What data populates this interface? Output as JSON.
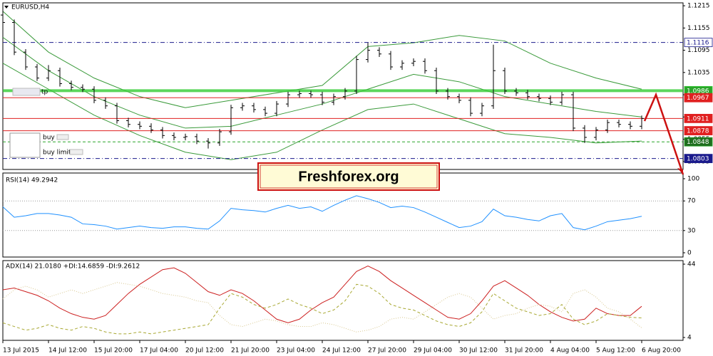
{
  "chart_data": [
    {
      "type": "candlestick",
      "title": "EURUSD,H4",
      "open": [
        1.119,
        1.117,
        1.109,
        1.105,
        1.102,
        1.104,
        1.1005,
        1.0995,
        1.099,
        1.096,
        1.0945,
        1.0905,
        1.0895,
        1.089,
        1.088,
        1.0865,
        1.086,
        1.0862,
        1.085,
        1.0845,
        1.0875,
        1.094,
        1.0945,
        1.0935,
        1.0925,
        1.095,
        1.0975,
        1.0978,
        1.0975,
        1.0955,
        1.097,
        1.0985,
        1.107,
        1.1095,
        1.1085,
        1.105,
        1.106,
        1.1065,
        1.104,
        1.0985,
        1.097,
        1.096,
        1.0925,
        1.0945,
        1.104,
        1.0985,
        1.098,
        1.097,
        1.0965,
        1.0955,
        1.0975,
        1.0885,
        1.086,
        1.088,
        1.09,
        1.0895,
        1.089
      ],
      "high": [
        1.1205,
        1.1178,
        1.1098,
        1.1058,
        1.1055,
        1.1048,
        1.1013,
        1.1003,
        1.0998,
        1.0968,
        1.0953,
        1.0913,
        1.0903,
        1.0898,
        1.0888,
        1.0873,
        1.087,
        1.087,
        1.0858,
        1.0883,
        1.0948,
        1.0953,
        1.0953,
        1.0943,
        1.0958,
        1.0983,
        1.0986,
        1.0986,
        1.0983,
        1.0978,
        1.0993,
        1.108,
        1.1115,
        1.1103,
        1.1093,
        1.1068,
        1.1073,
        1.1073,
        1.1048,
        1.0993,
        1.0978,
        1.0968,
        1.0953,
        1.111,
        1.1048,
        1.0993,
        1.0988,
        1.0978,
        1.0973,
        1.0983,
        1.0983,
        1.0893,
        1.0888,
        1.0908,
        1.0908,
        1.0903,
        1.0919
      ],
      "low": [
        1.1162,
        1.1082,
        1.1042,
        1.1012,
        1.1012,
        1.0997,
        1.0987,
        1.0982,
        1.0952,
        1.0937,
        1.0897,
        1.0887,
        1.0882,
        1.0872,
        1.0857,
        1.0852,
        1.0852,
        1.0842,
        1.083,
        1.0837,
        1.0867,
        1.0932,
        1.0927,
        1.0917,
        1.0917,
        1.0942,
        1.0967,
        1.0967,
        1.0947,
        1.0947,
        1.0962,
        1.0977,
        1.1062,
        1.1077,
        1.1042,
        1.1042,
        1.1052,
        1.1032,
        1.0977,
        1.0962,
        1.0952,
        1.0917,
        1.0917,
        1.0937,
        1.0977,
        1.0972,
        1.0962,
        1.0957,
        1.0947,
        1.0947,
        1.0877,
        1.0845,
        1.0852,
        1.0872,
        1.0887,
        1.0882,
        1.0882
      ],
      "close": [
        1.117,
        1.109,
        1.105,
        1.102,
        1.104,
        1.1005,
        1.0995,
        1.099,
        1.096,
        1.0945,
        1.0905,
        1.0895,
        1.089,
        1.088,
        1.0865,
        1.086,
        1.0862,
        1.085,
        1.0845,
        1.0875,
        1.094,
        1.0945,
        1.0935,
        1.0925,
        1.095,
        1.0975,
        1.0978,
        1.0975,
        1.0955,
        1.097,
        1.0985,
        1.107,
        1.1095,
        1.1085,
        1.105,
        1.106,
        1.1065,
        1.104,
        1.0985,
        1.097,
        1.096,
        1.0925,
        1.0945,
        1.104,
        1.0985,
        1.098,
        1.097,
        1.0965,
        1.0955,
        1.0975,
        1.0885,
        1.086,
        1.088,
        1.09,
        1.0895,
        1.089,
        1.0911
      ],
      "color": "#000000",
      "bands": {
        "x": [
          0,
          4,
          8,
          12,
          16,
          20,
          24,
          28,
          32,
          36,
          40,
          44,
          48,
          52,
          56
        ],
        "upper": [
          1.12,
          1.109,
          1.102,
          1.097,
          1.094,
          1.096,
          1.098,
          1.1,
          1.1105,
          1.1115,
          1.1135,
          1.112,
          1.106,
          1.102,
          1.099
        ],
        "middle": [
          1.113,
          1.104,
          1.097,
          1.092,
          1.0885,
          1.089,
          1.092,
          1.095,
          1.099,
          1.103,
          1.101,
          1.097,
          1.095,
          1.093,
          1.0915
        ],
        "lower": [
          1.106,
          1.099,
          1.092,
          1.0865,
          1.082,
          1.08,
          1.082,
          1.088,
          1.0935,
          1.095,
          1.091,
          1.087,
          1.086,
          1.0845,
          1.085
        ],
        "color": "#3a9a3a"
      },
      "levels": [
        {
          "value": 1.1116,
          "color": "#1a1a8c",
          "style": "dashdot",
          "label_bg": "#ffffff",
          "label_fg": "#1a1a8c"
        },
        {
          "value": 1.0986,
          "color": "#33cc33",
          "style": "thick",
          "label_bg": "#2aa52a",
          "label_fg": "#ffffff"
        },
        {
          "value": 1.0967,
          "color": "#e02020",
          "style": "solid",
          "label_bg": "#e02020",
          "label_fg": "#ffffff"
        },
        {
          "value": 1.0911,
          "color": "#e02020",
          "style": "solid",
          "label_bg": "#e02020",
          "label_fg": "#ffffff"
        },
        {
          "value": 1.0878,
          "color": "#e02020",
          "style": "solid",
          "label_bg": "#e02020",
          "label_fg": "#ffffff"
        },
        {
          "value": 1.0848,
          "color": "#2aa52a",
          "style": "dashed",
          "label_bg": "#1e6e1e",
          "label_fg": "#ffffff"
        },
        {
          "value": 1.0803,
          "color": "#1a1a8c",
          "style": "dashdot",
          "label_bg": "#1a1a8c",
          "label_fg": "#ffffff"
        }
      ],
      "ylim": [
        1.0785,
        1.1219
      ],
      "yticks": [
        1.1215,
        1.1155,
        1.1095,
        1.1035,
        1.0975,
        1.0915,
        1.0855,
        1.0795
      ],
      "xticks": [
        {
          "value": 0,
          "label": "13 Jul 2015"
        },
        {
          "value": 4,
          "label": "14 Jul 12:00"
        },
        {
          "value": 8,
          "label": "15 Jul 20:00"
        },
        {
          "value": 12,
          "label": "17 Jul 04:00"
        },
        {
          "value": 16,
          "label": "20 Jul 12:00"
        },
        {
          "value": 20,
          "label": "21 Jul 20:00"
        },
        {
          "value": 24,
          "label": "23 Jul 04:00"
        },
        {
          "value": 28,
          "label": "24 Jul 12:00"
        },
        {
          "value": 32,
          "label": "27 Jul 20:00"
        },
        {
          "value": 36,
          "label": "29 Jul 04:00"
        },
        {
          "value": 40,
          "label": "30 Jul 12:00"
        },
        {
          "value": 44,
          "label": "31 Jul 20:00"
        },
        {
          "value": 48,
          "label": "4 Aug 04:00"
        },
        {
          "value": 52,
          "label": "5 Aug 12:00"
        },
        {
          "value": 56,
          "label": "6 Aug 20:00"
        }
      ],
      "grid": false,
      "watermark": "Freshforex.org",
      "labels": [
        "tp",
        "buy",
        "buy limit"
      ]
    },
    {
      "type": "line",
      "title": "RSI(14) 49.2942",
      "series": [
        {
          "color": "#1e90ff",
          "style": "solid",
          "values": [
            62,
            48,
            50,
            53,
            53,
            51,
            48,
            39,
            38,
            36,
            32,
            34,
            36,
            34,
            33,
            35,
            35,
            33,
            32,
            43,
            60,
            58,
            57,
            55,
            60,
            64,
            60,
            62,
            56,
            64,
            71,
            77,
            73,
            68,
            61,
            63,
            61,
            55,
            48,
            41,
            34,
            36,
            42,
            59,
            50,
            48,
            45,
            43,
            50,
            53,
            34,
            31,
            36,
            42,
            44,
            46,
            49.2942
          ]
        }
      ],
      "ylim": [
        0,
        100
      ],
      "yticks": [
        100,
        70,
        30,
        0
      ],
      "grid": true
    },
    {
      "type": "line",
      "title": "ADX(14) 21.0180 +DI:14.6859 -DI:9.2612",
      "series": [
        {
          "color": "#cc1f1f",
          "style": "solid",
          "values": [
            30,
            31,
            29,
            27,
            24,
            20,
            17,
            15,
            14,
            16,
            22,
            28,
            33,
            37,
            41,
            42,
            39,
            34,
            29,
            27,
            30,
            28,
            24,
            19,
            14,
            12,
            14,
            19,
            23,
            26,
            33,
            40,
            43,
            40,
            35,
            31,
            27,
            23,
            19,
            15,
            14,
            17,
            24,
            32,
            35,
            31,
            27,
            22,
            18,
            15,
            13,
            14,
            20,
            17,
            16,
            16,
            21.018
          ]
        },
        {
          "color": "#a8a832",
          "style": "dashed",
          "values": [
            12,
            10,
            8,
            9,
            11,
            9,
            8,
            10,
            9,
            7,
            6,
            6,
            7,
            6,
            7,
            8,
            9,
            10,
            11,
            20,
            28,
            26,
            22,
            20,
            22,
            25,
            22,
            20,
            17,
            19,
            24,
            33,
            32,
            28,
            22,
            20,
            19,
            16,
            13,
            11,
            10,
            12,
            18,
            28,
            24,
            20,
            18,
            16,
            17,
            22,
            14,
            11,
            13,
            17,
            16,
            15,
            14.6859
          ]
        },
        {
          "color": "#d8c890",
          "style": "dotted",
          "values": [
            25,
            30,
            32,
            30,
            26,
            28,
            30,
            28,
            30,
            32,
            34,
            33,
            32,
            30,
            28,
            27,
            26,
            24,
            23,
            16,
            11,
            10,
            12,
            14,
            13,
            11,
            10,
            10,
            12,
            11,
            9,
            7,
            8,
            10,
            14,
            15,
            14,
            18,
            22,
            26,
            28,
            26,
            20,
            14,
            16,
            17,
            20,
            22,
            21,
            18,
            28,
            30,
            26,
            20,
            18,
            14,
            9.2612
          ]
        }
      ],
      "ylim": [
        4,
        44
      ],
      "yticks": [
        44,
        4
      ],
      "grid": true
    }
  ]
}
